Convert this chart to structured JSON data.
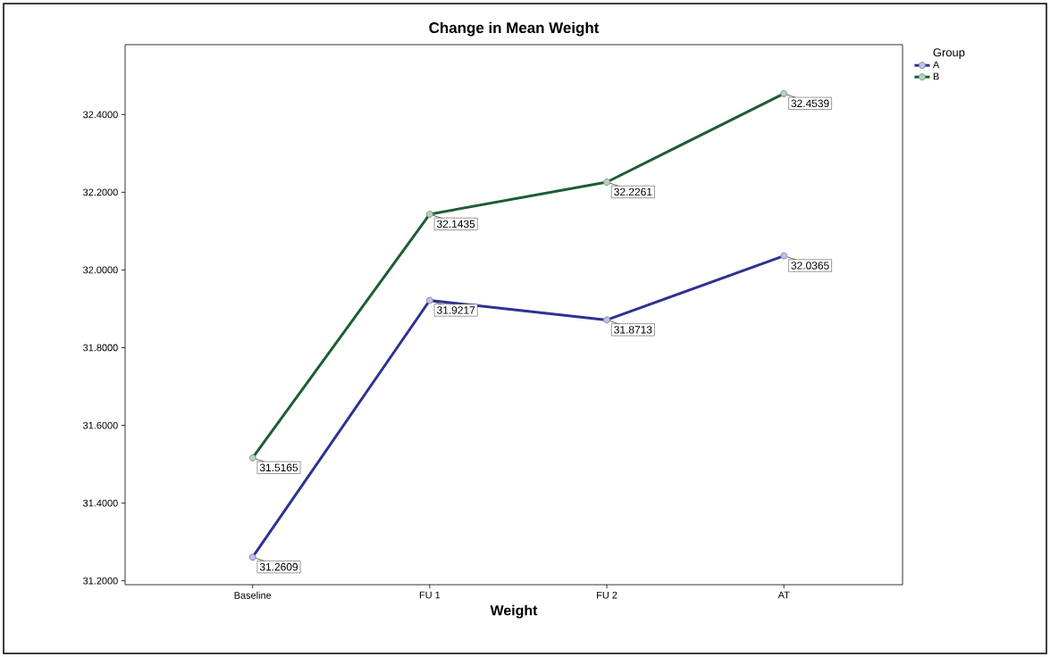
{
  "chart_data": {
    "type": "line",
    "title": "Change in Mean Weight",
    "xlabel": "Weight",
    "legend_title": "Group",
    "categories": [
      "Baseline",
      "FU 1",
      "FU 2",
      "AT"
    ],
    "series": [
      {
        "name": "A",
        "color": "#2e3192",
        "values": [
          31.2609,
          31.9217,
          31.8713,
          32.0365
        ],
        "value_labels": [
          "31.2609",
          "31.9217",
          "31.8713",
          "32.0365"
        ]
      },
      {
        "name": "B",
        "color": "#1b5e34",
        "values": [
          31.5165,
          32.1435,
          32.2261,
          32.4539
        ],
        "value_labels": [
          "31.5165",
          "32.1435",
          "32.2261",
          "32.4539"
        ]
      }
    ],
    "ylim": [
      31.19,
      32.58
    ],
    "yticks": [
      {
        "value": 31.2,
        "label": "31.2000"
      },
      {
        "value": 31.4,
        "label": "31.4000"
      },
      {
        "value": 31.6,
        "label": "31.6000"
      },
      {
        "value": 31.8,
        "label": "31.8000"
      },
      {
        "value": 32.0,
        "label": "32.0000"
      },
      {
        "value": 32.2,
        "label": "32.2000"
      },
      {
        "value": 32.4,
        "label": "32.4000"
      }
    ],
    "marker": "circle",
    "line_style": "solid",
    "grid": false,
    "legend": "top right"
  }
}
